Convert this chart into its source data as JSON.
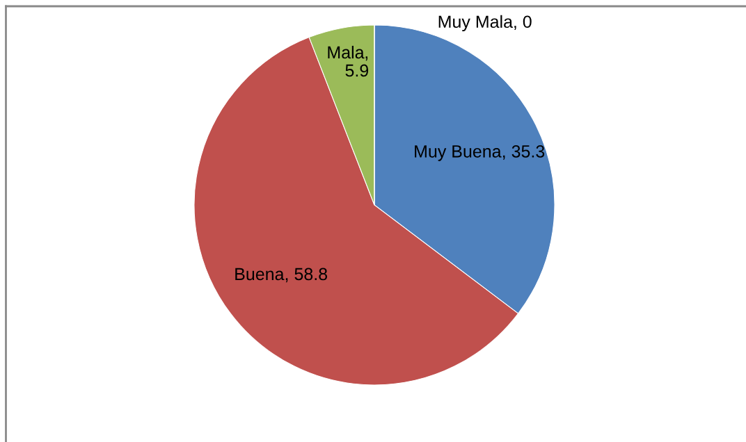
{
  "chart_data": {
    "type": "pie",
    "categories": [
      "Muy Buena",
      "Buena",
      "Mala",
      "Muy Mala"
    ],
    "values": [
      35.3,
      58.8,
      5.9,
      0
    ],
    "colors": [
      "#4f81bd",
      "#c0504d",
      "#9bbb59",
      "#8064a2"
    ],
    "value_labels": [
      ", 35.3",
      ", 58.8",
      ", 5.9",
      ", 0"
    ]
  }
}
